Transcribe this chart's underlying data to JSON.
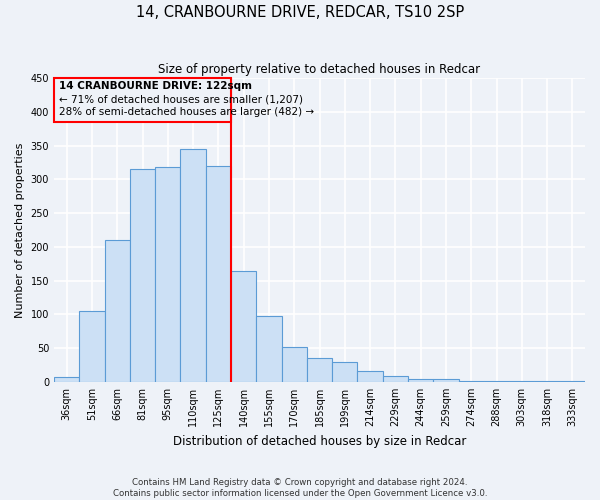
{
  "title": "14, CRANBOURNE DRIVE, REDCAR, TS10 2SP",
  "subtitle": "Size of property relative to detached houses in Redcar",
  "xlabel": "Distribution of detached houses by size in Redcar",
  "ylabel": "Number of detached properties",
  "bin_labels": [
    "36sqm",
    "51sqm",
    "66sqm",
    "81sqm",
    "95sqm",
    "110sqm",
    "125sqm",
    "140sqm",
    "155sqm",
    "170sqm",
    "185sqm",
    "199sqm",
    "214sqm",
    "229sqm",
    "244sqm",
    "259sqm",
    "274sqm",
    "288sqm",
    "303sqm",
    "318sqm",
    "333sqm"
  ],
  "bar_heights": [
    7,
    105,
    210,
    316,
    318,
    345,
    320,
    165,
    97,
    51,
    36,
    30,
    16,
    9,
    5,
    5,
    1,
    1,
    1,
    1,
    1
  ],
  "bar_color": "#cce0f5",
  "bar_edge_color": "#5b9bd5",
  "vline_x_idx": 6,
  "vline_color": "red",
  "annotation_title": "14 CRANBOURNE DRIVE: 122sqm",
  "annotation_line1": "← 71% of detached houses are smaller (1,207)",
  "annotation_line2": "28% of semi-detached houses are larger (482) →",
  "annotation_box_color": "red",
  "ylim": [
    0,
    450
  ],
  "yticks": [
    0,
    50,
    100,
    150,
    200,
    250,
    300,
    350,
    400,
    450
  ],
  "footer_line1": "Contains HM Land Registry data © Crown copyright and database right 2024.",
  "footer_line2": "Contains public sector information licensed under the Open Government Licence v3.0.",
  "bg_color": "#eef2f8",
  "grid_color": "#ffffff"
}
